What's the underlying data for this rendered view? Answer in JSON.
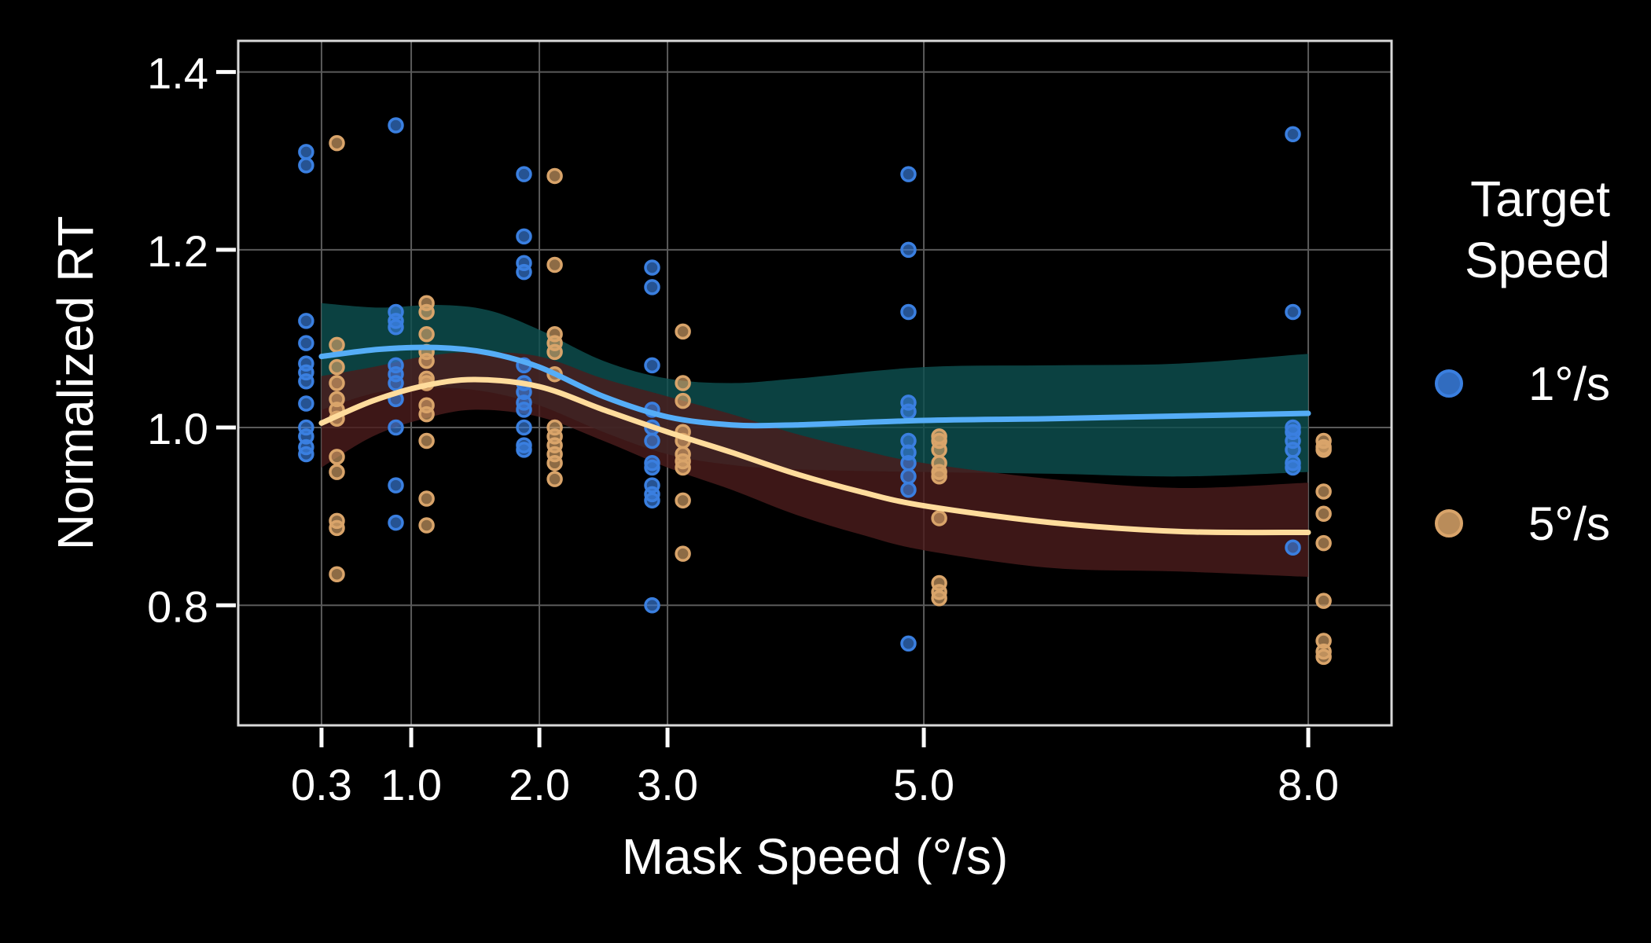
{
  "chart_data": {
    "type": "scatter",
    "title": "",
    "xlabel": "Mask Speed (°/s)",
    "ylabel": "Normalized RT",
    "xlim": [
      -0.35,
      8.65
    ],
    "ylim": [
      0.665,
      1.435
    ],
    "x_ticks": [
      0.3,
      1.0,
      2.0,
      3.0,
      5.0,
      8.0
    ],
    "x_tick_labels": [
      "0.3",
      "1.0",
      "2.0",
      "3.0",
      "5.0",
      "8.0"
    ],
    "y_ticks": [
      0.8,
      1.0,
      1.2,
      1.4
    ],
    "y_tick_labels": [
      "0.8",
      "1.0",
      "1.2",
      "1.4"
    ],
    "grid": true,
    "background": "#000000",
    "legend": {
      "title_lines": [
        "Target",
        "Speed"
      ],
      "placement": "right",
      "entries": [
        {
          "label": "1°/s",
          "color": "#3a7fe0"
        },
        {
          "label": "5°/s",
          "color": "#d9a46a"
        }
      ]
    },
    "series": [
      {
        "key": "target-1",
        "color": "#3a7fe0",
        "line_color": "#55adf7",
        "band_color": "#0e4f4f",
        "x_offset": -0.12,
        "points": [
          {
            "x": 0.3,
            "values": [
              1.31,
              1.295,
              1.12,
              1.095,
              1.072,
              1.062,
              1.052,
              1.027,
              1.0,
              0.99,
              0.978,
              0.97
            ]
          },
          {
            "x": 1.0,
            "values": [
              1.34,
              1.13,
              1.12,
              1.113,
              1.07,
              1.06,
              1.05,
              1.032,
              1.0,
              0.935,
              0.893
            ]
          },
          {
            "x": 2.0,
            "values": [
              1.285,
              1.215,
              1.185,
              1.175,
              1.07,
              1.05,
              1.04,
              1.028,
              1.02,
              1.0,
              0.98,
              0.975
            ]
          },
          {
            "x": 3.0,
            "values": [
              1.18,
              1.158,
              1.07,
              1.02,
              1.0,
              0.985,
              0.96,
              0.955,
              0.935,
              0.925,
              0.918,
              0.8
            ]
          },
          {
            "x": 5.0,
            "values": [
              1.285,
              1.2,
              1.13,
              1.028,
              1.018,
              0.985,
              0.972,
              0.96,
              0.945,
              0.93,
              0.757
            ]
          },
          {
            "x": 8.0,
            "values": [
              1.33,
              1.13,
              1.0,
              0.995,
              0.985,
              0.975,
              0.96,
              0.955,
              0.865
            ]
          }
        ],
        "fit": [
          {
            "x": 0.3,
            "y": 1.08
          },
          {
            "x": 0.75,
            "y": 1.088
          },
          {
            "x": 1.2,
            "y": 1.09
          },
          {
            "x": 1.6,
            "y": 1.084
          },
          {
            "x": 2.0,
            "y": 1.068
          },
          {
            "x": 2.5,
            "y": 1.035
          },
          {
            "x": 3.0,
            "y": 1.012
          },
          {
            "x": 3.5,
            "y": 1.003
          },
          {
            "x": 4.0,
            "y": 1.003
          },
          {
            "x": 5.0,
            "y": 1.008
          },
          {
            "x": 6.0,
            "y": 1.01
          },
          {
            "x": 7.0,
            "y": 1.013
          },
          {
            "x": 8.0,
            "y": 1.016
          }
        ],
        "band": [
          {
            "x": 0.3,
            "lo": 1.02,
            "hi": 1.14
          },
          {
            "x": 0.75,
            "lo": 1.04,
            "hi": 1.135
          },
          {
            "x": 1.2,
            "lo": 1.045,
            "hi": 1.138
          },
          {
            "x": 1.6,
            "lo": 1.04,
            "hi": 1.132
          },
          {
            "x": 2.0,
            "lo": 1.025,
            "hi": 1.11
          },
          {
            "x": 2.5,
            "lo": 0.995,
            "hi": 1.075
          },
          {
            "x": 3.0,
            "lo": 0.97,
            "hi": 1.055
          },
          {
            "x": 3.5,
            "lo": 0.958,
            "hi": 1.05
          },
          {
            "x": 4.0,
            "lo": 0.953,
            "hi": 1.055
          },
          {
            "x": 5.0,
            "lo": 0.95,
            "hi": 1.068
          },
          {
            "x": 6.0,
            "lo": 0.948,
            "hi": 1.07
          },
          {
            "x": 7.0,
            "lo": 0.945,
            "hi": 1.072
          },
          {
            "x": 8.0,
            "lo": 0.95,
            "hi": 1.083
          }
        ]
      },
      {
        "key": "target-5",
        "color": "#d9a46a",
        "line_color": "#ffdc9c",
        "band_color": "#4a1c1c",
        "x_offset": 0.12,
        "points": [
          {
            "x": 0.3,
            "values": [
              1.32,
              1.093,
              1.068,
              1.05,
              1.032,
              1.02,
              1.01,
              0.967,
              0.95,
              0.895,
              0.887,
              0.835
            ]
          },
          {
            "x": 1.0,
            "values": [
              1.14,
              1.13,
              1.105,
              1.085,
              1.075,
              1.055,
              1.05,
              1.025,
              1.015,
              0.985,
              0.92,
              0.89
            ]
          },
          {
            "x": 2.0,
            "values": [
              1.283,
              1.183,
              1.105,
              1.095,
              1.085,
              1.06,
              1.0,
              0.99,
              0.98,
              0.97,
              0.96,
              0.942
            ]
          },
          {
            "x": 3.0,
            "values": [
              1.108,
              1.05,
              1.03,
              0.995,
              0.985,
              0.97,
              0.962,
              0.955,
              0.918,
              0.858
            ]
          },
          {
            "x": 5.0,
            "values": [
              0.99,
              0.985,
              0.975,
              0.96,
              0.95,
              0.945,
              0.898,
              0.825,
              0.815,
              0.808
            ]
          },
          {
            "x": 8.0,
            "values": [
              0.985,
              0.978,
              0.975,
              0.928,
              0.903,
              0.87,
              0.805,
              0.76,
              0.748,
              0.742
            ]
          }
        ],
        "fit": [
          {
            "x": 0.3,
            "y": 1.005
          },
          {
            "x": 0.7,
            "y": 1.03
          },
          {
            "x": 1.1,
            "y": 1.047
          },
          {
            "x": 1.5,
            "y": 1.054
          },
          {
            "x": 2.0,
            "y": 1.046
          },
          {
            "x": 2.5,
            "y": 1.02
          },
          {
            "x": 3.0,
            "y": 0.995
          },
          {
            "x": 3.5,
            "y": 0.972
          },
          {
            "x": 4.0,
            "y": 0.948
          },
          {
            "x": 4.5,
            "y": 0.928
          },
          {
            "x": 5.0,
            "y": 0.912
          },
          {
            "x": 6.0,
            "y": 0.893
          },
          {
            "x": 7.0,
            "y": 0.883
          },
          {
            "x": 8.0,
            "y": 0.882
          }
        ],
        "band": [
          {
            "x": 0.3,
            "lo": 0.955,
            "hi": 1.058
          },
          {
            "x": 0.7,
            "lo": 0.99,
            "hi": 1.068
          },
          {
            "x": 1.1,
            "lo": 1.01,
            "hi": 1.08
          },
          {
            "x": 1.5,
            "lo": 1.02,
            "hi": 1.085
          },
          {
            "x": 2.0,
            "lo": 1.012,
            "hi": 1.08
          },
          {
            "x": 2.5,
            "lo": 0.985,
            "hi": 1.055
          },
          {
            "x": 3.0,
            "lo": 0.955,
            "hi": 1.035
          },
          {
            "x": 3.5,
            "lo": 0.93,
            "hi": 1.015
          },
          {
            "x": 4.0,
            "lo": 0.902,
            "hi": 0.993
          },
          {
            "x": 4.5,
            "lo": 0.88,
            "hi": 0.975
          },
          {
            "x": 5.0,
            "lo": 0.862,
            "hi": 0.96
          },
          {
            "x": 6.0,
            "lo": 0.842,
            "hi": 0.942
          },
          {
            "x": 7.0,
            "lo": 0.838,
            "hi": 0.932
          },
          {
            "x": 8.0,
            "lo": 0.832,
            "hi": 0.938
          }
        ]
      }
    ]
  }
}
